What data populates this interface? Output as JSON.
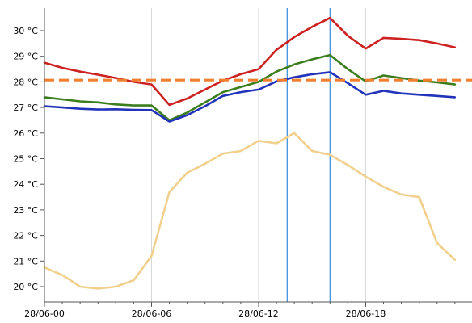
{
  "chart_data": {
    "type": "line",
    "x": [
      "28/06-00",
      "28/06-01",
      "28/06-02",
      "28/06-03",
      "28/06-04",
      "28/06-05",
      "28/06-06",
      "28/06-07",
      "28/06-08",
      "28/06-09",
      "28/06-10",
      "28/06-11",
      "28/06-12",
      "28/06-13",
      "28/06-14",
      "28/06-15",
      "28/06-16",
      "28/06-17",
      "28/06-18",
      "28/06-19",
      "28/06-20",
      "28/06-21",
      "28/06-22",
      "28/06-23"
    ],
    "x_tick_labels": [
      "28/06-00",
      "28/06-06",
      "28/06-12",
      "28/06-18"
    ],
    "y_tick_labels": [
      "20 °C",
      "21 °C",
      "22 °C",
      "23 °C",
      "24 °C",
      "25 °C",
      "26 °C",
      "27 °C",
      "28 °C",
      "29 °C",
      "30 °C"
    ],
    "ylim": [
      19.5,
      30.9
    ],
    "series": [
      {
        "color": "#cc2222",
        "values": [
          28.75,
          28.55,
          28.4,
          28.28,
          28.15,
          28.0,
          27.9,
          27.1,
          27.35,
          27.7,
          28.05,
          28.3,
          28.5,
          29.25,
          29.75,
          30.15,
          30.5,
          29.8,
          29.3,
          29.72,
          29.68,
          29.63,
          29.5,
          29.35
        ]
      },
      {
        "color": "#3c7d1e",
        "values": [
          27.4,
          27.32,
          27.24,
          27.2,
          27.12,
          27.08,
          27.08,
          26.5,
          26.8,
          27.2,
          27.6,
          27.8,
          28.0,
          28.4,
          28.68,
          28.88,
          29.05,
          28.5,
          28.02,
          28.25,
          28.15,
          28.05,
          27.98,
          27.9
        ]
      },
      {
        "color": "#2233bb",
        "values": [
          27.05,
          27.0,
          26.95,
          26.92,
          26.93,
          26.91,
          26.9,
          26.45,
          26.7,
          27.05,
          27.45,
          27.6,
          27.7,
          28.02,
          28.18,
          28.3,
          28.38,
          27.95,
          27.5,
          27.65,
          27.55,
          27.5,
          27.45,
          27.4
        ]
      },
      {
        "color": "#f0d08c",
        "values": [
          20.75,
          20.45,
          20.0,
          19.92,
          20.0,
          20.25,
          21.2,
          23.7,
          24.45,
          24.8,
          25.2,
          25.3,
          25.7,
          25.6,
          26.0,
          25.3,
          25.15,
          24.75,
          24.3,
          23.9,
          23.6,
          23.5,
          21.7,
          21.05
        ]
      }
    ],
    "reference_line": {
      "value": 28.07,
      "color": "#f08030",
      "style": "dashed"
    },
    "vertical_markers": [
      {
        "x": 13.6,
        "color": "#3388dd"
      },
      {
        "x": 16.0,
        "color": "#3388dd"
      }
    ],
    "grid": "vertical-only"
  }
}
